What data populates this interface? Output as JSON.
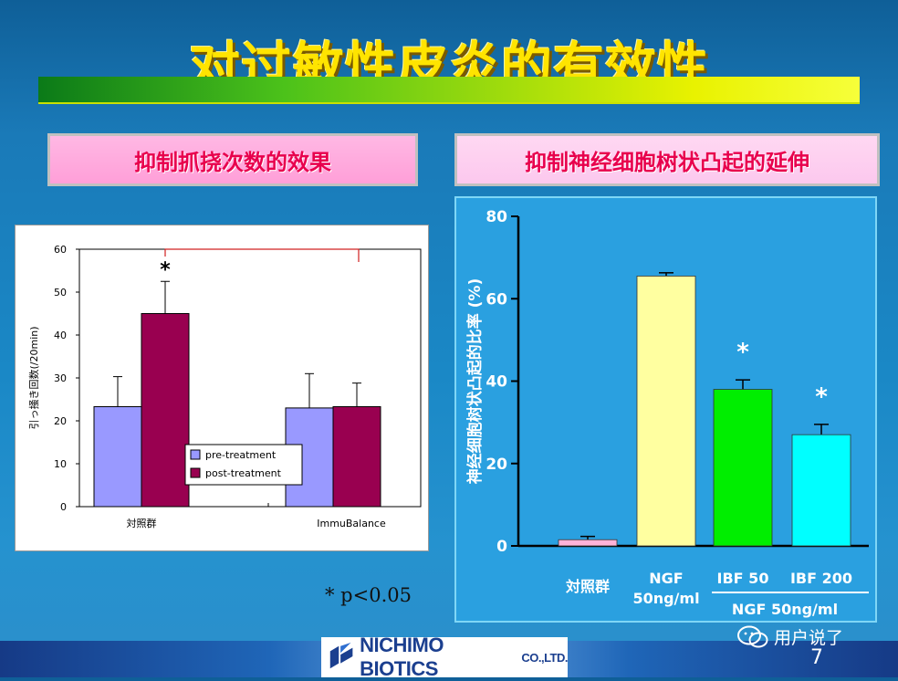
{
  "title": "对过敏性皮炎的有效性",
  "panels": {
    "left_label": "抑制抓挠次数的效果",
    "right_label": "抑制神经细胞树状凸起的延伸"
  },
  "note": "* p<0.05",
  "footer": {
    "company": "NICHIMO BIOTICS",
    "company_suffix": "CO.,LTD.",
    "wechat_text": "用户说了",
    "page_number": "7"
  },
  "colors": {
    "title": "#ffe400",
    "pre": "#9999ff",
    "post": "#990050",
    "control": "#ffb3d9",
    "ngf": "#ffffa0",
    "ibf50": "#00ee00",
    "ibf200": "#00ffff"
  },
  "chart_data": [
    {
      "type": "bar",
      "ylabel": "引っ掻き回数(/20min)",
      "ylim": [
        0,
        60
      ],
      "yticks": [
        "0",
        "10",
        "20",
        "30",
        "40",
        "50",
        "60"
      ],
      "categories": [
        "対照群",
        "ImmuBalance"
      ],
      "series": [
        {
          "name": "pre-treatment",
          "values": [
            23.3,
            23.0
          ],
          "errors": [
            7.0,
            8.0
          ]
        },
        {
          "name": "post-treatment",
          "values": [
            45.0,
            23.3
          ],
          "errors": [
            7.5,
            5.5
          ]
        }
      ],
      "legend_position": "inside-lower-right",
      "significance": {
        "marker": "*",
        "category": "対照群",
        "series": "post-treatment"
      }
    },
    {
      "type": "bar",
      "ylabel": "神经细胞树状凸起的比率 (%)",
      "ylim": [
        0,
        80
      ],
      "yticks": [
        "0",
        "20",
        "40",
        "60",
        "80"
      ],
      "categories": [
        "対照群",
        "NGF\n50ng/ml",
        "IBF 50",
        "IBF 200"
      ],
      "group_label": "NGF 50ng/ml",
      "values": [
        1.5,
        65.5,
        38.0,
        27.0
      ],
      "errors": [
        0.8,
        0.8,
        2.3,
        2.5
      ],
      "significance": {
        "marker": "*",
        "categories": [
          "IBF 50",
          "IBF 200"
        ]
      }
    }
  ]
}
